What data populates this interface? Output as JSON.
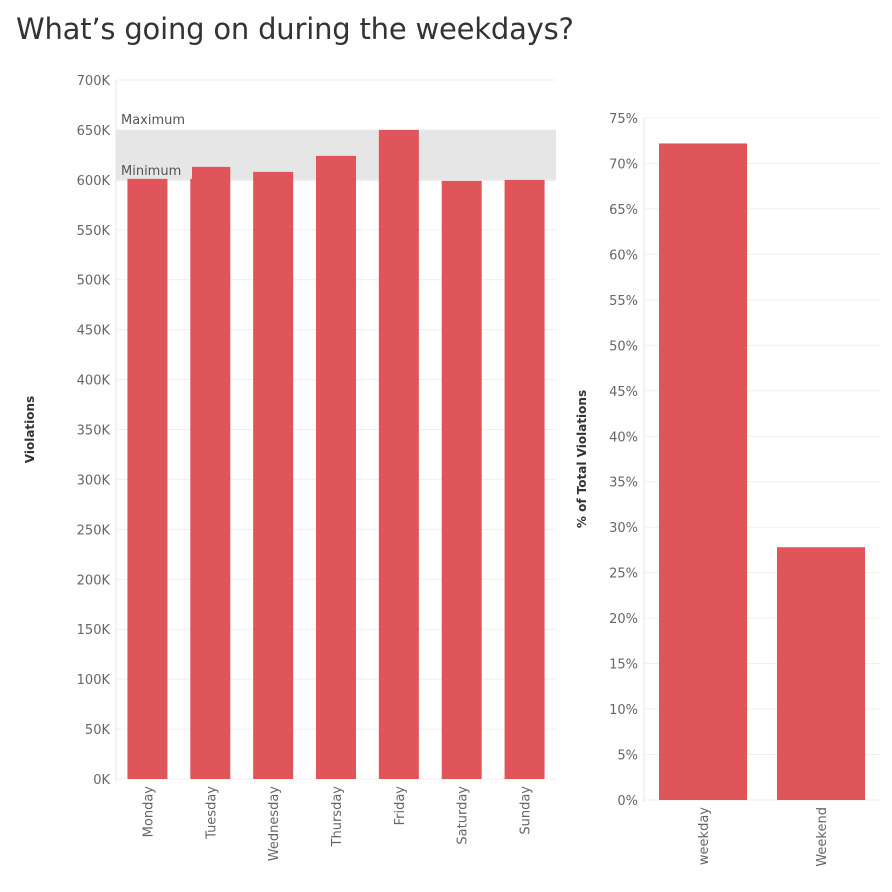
{
  "page": {
    "title": "What’s going on during the weekdays?"
  },
  "chart_data": [
    {
      "type": "bar",
      "title": "",
      "ylabel": "Violations",
      "xlabel": "",
      "ylim": [
        0,
        700000
      ],
      "yticks": [
        0,
        50000,
        100000,
        150000,
        200000,
        250000,
        300000,
        350000,
        400000,
        450000,
        500000,
        550000,
        600000,
        650000,
        700000
      ],
      "ytick_labels": [
        "0K",
        "50K",
        "100K",
        "150K",
        "200K",
        "250K",
        "300K",
        "350K",
        "400K",
        "450K",
        "500K",
        "550K",
        "600K",
        "650K",
        "700K"
      ],
      "categories": [
        "Monday",
        "Tuesday",
        "Wednesday",
        "Thursday",
        "Friday",
        "Saturday",
        "Sunday"
      ],
      "values": [
        603000,
        613000,
        608000,
        624000,
        650000,
        599000,
        600000
      ],
      "color": "#e0555a",
      "reference_band": {
        "min": 599000,
        "max": 650000,
        "min_label": "Minimum",
        "max_label": "Maximum",
        "color": "#e6e6e6"
      },
      "grid": true
    },
    {
      "type": "bar",
      "title": "",
      "ylabel": "% of Total Violations",
      "xlabel": "",
      "ylim": [
        0,
        75
      ],
      "yticks": [
        0,
        5,
        10,
        15,
        20,
        25,
        30,
        35,
        40,
        45,
        50,
        55,
        60,
        65,
        70,
        75
      ],
      "ytick_labels": [
        "0%",
        "5%",
        "10%",
        "15%",
        "20%",
        "25%",
        "30%",
        "35%",
        "40%",
        "45%",
        "50%",
        "55%",
        "60%",
        "65%",
        "70%",
        "75%"
      ],
      "categories": [
        "weekday",
        "Weekend"
      ],
      "values": [
        72.2,
        27.8
      ],
      "color": "#e0555a",
      "grid": true
    }
  ]
}
